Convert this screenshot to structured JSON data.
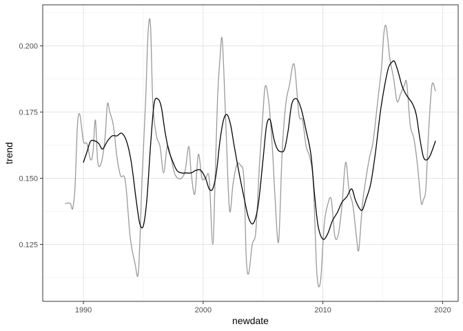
{
  "chart_data": {
    "type": "line",
    "title": "",
    "xlabel": "newdate",
    "ylabel": "trend",
    "xlim": [
      1986.6,
      2021.3
    ],
    "ylim": [
      0.1035,
      0.2155
    ],
    "x_ticks": [
      1990,
      2000,
      2010,
      2020
    ],
    "x_tick_labels": [
      "1990",
      "2000",
      "2010",
      "2020"
    ],
    "y_ticks": [
      0.125,
      0.15,
      0.175,
      0.2
    ],
    "y_tick_labels": [
      "0.125",
      "0.150",
      "0.175",
      "0.200"
    ],
    "grid": true,
    "legend": "none",
    "series": [
      {
        "color": "#999999",
        "x": [
          1988.5,
          1988.9,
          1989.1,
          1989.3,
          1989.5,
          1989.7,
          1990.0,
          1990.3,
          1990.6,
          1990.8,
          1991.0,
          1991.2,
          1991.5,
          1991.8,
          1992.0,
          1992.2,
          1992.5,
          1992.8,
          1993.1,
          1993.5,
          1993.9,
          1994.3,
          1994.6,
          1994.9,
          1995.2,
          1995.4,
          1995.6,
          1995.8,
          1996.1,
          1996.4,
          1996.7,
          1997.0,
          1997.3,
          1997.6,
          1997.9,
          1998.2,
          1998.5,
          1998.8,
          1999.0,
          1999.3,
          1999.6,
          1999.9,
          2000.2,
          2000.5,
          2000.8,
          2001.0,
          2001.2,
          2001.4,
          2001.6,
          2001.9,
          2002.2,
          2002.5,
          2002.8,
          2003.1,
          2003.4,
          2003.6,
          2003.8,
          2004.1,
          2004.4,
          2004.7,
          2005.0,
          2005.2,
          2005.5,
          2005.8,
          2006.0,
          2006.3,
          2006.6,
          2006.9,
          2007.2,
          2007.6,
          2008.0,
          2008.3,
          2008.6,
          2008.9,
          2009.2,
          2009.5,
          2009.8,
          2010.1,
          2010.4,
          2010.7,
          2011.0,
          2011.3,
          2011.6,
          2011.9,
          2012.2,
          2012.5,
          2012.8,
          2013.0,
          2013.3,
          2013.6,
          2013.9,
          2014.2,
          2014.6,
          2014.9,
          2015.1,
          2015.3,
          2015.6,
          2015.9,
          2016.2,
          2016.5,
          2016.8,
          2017.0,
          2017.3,
          2017.6,
          2017.9,
          2018.2,
          2018.4,
          2018.6,
          2018.8,
          2019.1,
          2019.4
        ],
        "values": [
          0.1405,
          0.1405,
          0.1385,
          0.147,
          0.17,
          0.174,
          0.164,
          0.163,
          0.157,
          0.16,
          0.172,
          0.156,
          0.156,
          0.165,
          0.178,
          0.175,
          0.17,
          0.158,
          0.151,
          0.149,
          0.128,
          0.118,
          0.115,
          0.15,
          0.18,
          0.205,
          0.208,
          0.178,
          0.166,
          0.162,
          0.152,
          0.162,
          0.158,
          0.152,
          0.15,
          0.15,
          0.153,
          0.162,
          0.152,
          0.144,
          0.159,
          0.15,
          0.15,
          0.15,
          0.125,
          0.15,
          0.18,
          0.195,
          0.202,
          0.17,
          0.138,
          0.148,
          0.155,
          0.155,
          0.15,
          0.12,
          0.114,
          0.125,
          0.13,
          0.155,
          0.175,
          0.185,
          0.178,
          0.16,
          0.143,
          0.126,
          0.16,
          0.178,
          0.185,
          0.193,
          0.174,
          0.172,
          0.162,
          0.158,
          0.148,
          0.114,
          0.111,
          0.132,
          0.14,
          0.142,
          0.128,
          0.129,
          0.14,
          0.156,
          0.145,
          0.14,
          0.128,
          0.123,
          0.14,
          0.15,
          0.158,
          0.164,
          0.18,
          0.192,
          0.205,
          0.207,
          0.195,
          0.188,
          0.179,
          0.182,
          0.185,
          0.186,
          0.17,
          0.165,
          0.155,
          0.141,
          0.142,
          0.146,
          0.165,
          0.185,
          0.183
        ]
      },
      {
        "color": "#000000",
        "x": [
          1990.0,
          1990.3,
          1990.6,
          1991.0,
          1991.3,
          1991.6,
          1992.0,
          1992.4,
          1992.8,
          1993.2,
          1993.6,
          1994.0,
          1994.4,
          1994.7,
          1995.0,
          1995.3,
          1995.6,
          1995.9,
          1996.2,
          1996.5,
          1996.8,
          1997.1,
          1997.4,
          1997.8,
          1998.2,
          1998.6,
          1999.0,
          1999.4,
          1999.8,
          2000.2,
          2000.5,
          2000.8,
          2001.1,
          2001.4,
          2001.7,
          2002.0,
          2002.3,
          2002.6,
          2003.0,
          2003.4,
          2003.8,
          2004.2,
          2004.6,
          2005.0,
          2005.3,
          2005.6,
          2005.9,
          2006.2,
          2006.5,
          2006.8,
          2007.1,
          2007.4,
          2007.8,
          2008.2,
          2008.6,
          2009.0,
          2009.3,
          2009.6,
          2010.0,
          2010.4,
          2010.8,
          2011.2,
          2011.6,
          2012.0,
          2012.4,
          2012.7,
          2013.0,
          2013.3,
          2013.6,
          2014.0,
          2014.4,
          2014.8,
          2015.2,
          2015.5,
          2015.8,
          2016.0,
          2016.3,
          2016.6,
          2016.9,
          2017.2,
          2017.5,
          2017.8,
          2018.1,
          2018.4,
          2018.7,
          2019.0,
          2019.4
        ],
        "values": [
          0.156,
          0.16,
          0.164,
          0.164,
          0.163,
          0.161,
          0.164,
          0.166,
          0.166,
          0.167,
          0.164,
          0.156,
          0.142,
          0.133,
          0.132,
          0.142,
          0.162,
          0.178,
          0.18,
          0.177,
          0.168,
          0.161,
          0.157,
          0.153,
          0.152,
          0.152,
          0.152,
          0.153,
          0.153,
          0.15,
          0.146,
          0.146,
          0.152,
          0.164,
          0.172,
          0.174,
          0.17,
          0.162,
          0.152,
          0.143,
          0.135,
          0.133,
          0.14,
          0.157,
          0.17,
          0.172,
          0.165,
          0.161,
          0.16,
          0.161,
          0.168,
          0.178,
          0.18,
          0.176,
          0.168,
          0.159,
          0.144,
          0.132,
          0.127,
          0.129,
          0.134,
          0.137,
          0.141,
          0.143,
          0.146,
          0.142,
          0.139,
          0.138,
          0.142,
          0.148,
          0.16,
          0.175,
          0.186,
          0.192,
          0.194,
          0.194,
          0.19,
          0.185,
          0.182,
          0.18,
          0.178,
          0.174,
          0.165,
          0.158,
          0.157,
          0.159,
          0.164
        ]
      }
    ]
  }
}
